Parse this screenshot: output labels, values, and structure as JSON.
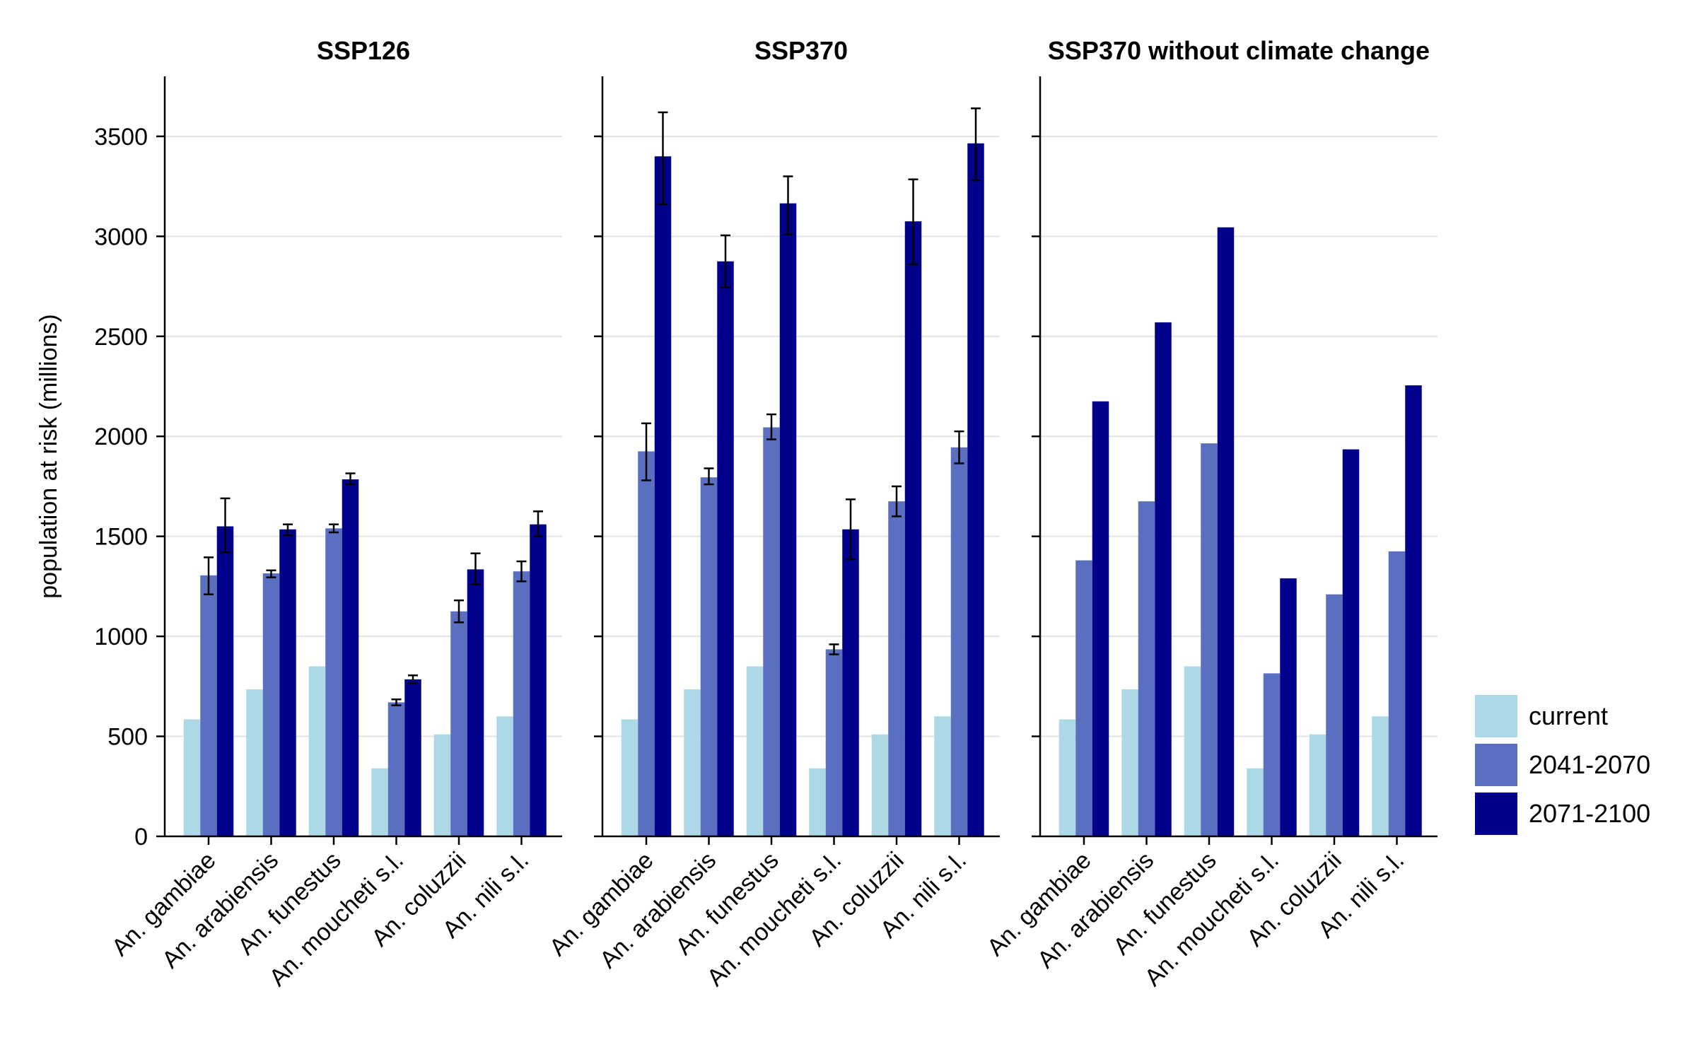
{
  "chart_data": {
    "type": "bar",
    "ylabel": "population at risk (millions)",
    "ylim": [
      0,
      3800
    ],
    "yticks": [
      0,
      500,
      1000,
      1500,
      2000,
      2500,
      3000,
      3500
    ],
    "grid": "horizontal",
    "legend_position": "right-bottom",
    "categories": [
      "An. gambiae",
      "An. arabiensis",
      "An. funestus",
      "An. moucheti s.l.",
      "An. coluzzii",
      "An. nili s.l."
    ],
    "series_names": [
      "current",
      "2041-2070",
      "2071-2100"
    ],
    "colors": [
      "#add8e6",
      "#5a6fbf",
      "#00008b"
    ],
    "panels": [
      {
        "title": "SSP126",
        "series": [
          {
            "name": "current",
            "values": [
              585,
              735,
              850,
              340,
              510,
              600
            ],
            "err": null
          },
          {
            "name": "2041-2070",
            "values": [
              1305,
              1315,
              1540,
              670,
              1125,
              1325
            ],
            "err": [
              [
                1210,
                1395
              ],
              [
                1295,
                1330
              ],
              [
                1520,
                1560
              ],
              [
                655,
                685
              ],
              [
                1070,
                1180
              ],
              [
                1275,
                1375
              ]
            ]
          },
          {
            "name": "2071-2100",
            "values": [
              1550,
              1535,
              1785,
              785,
              1335,
              1560
            ],
            "err": [
              [
                1420,
                1690
              ],
              [
                1505,
                1560
              ],
              [
                1760,
                1815
              ],
              [
                765,
                805
              ],
              [
                1260,
                1415
              ],
              [
                1500,
                1625
              ]
            ]
          }
        ]
      },
      {
        "title": "SSP370",
        "series": [
          {
            "name": "current",
            "values": [
              585,
              735,
              850,
              340,
              510,
              600
            ],
            "err": null
          },
          {
            "name": "2041-2070",
            "values": [
              1925,
              1795,
              2045,
              935,
              1675,
              1945
            ],
            "err": [
              [
                1780,
                2065
              ],
              [
                1760,
                1840
              ],
              [
                1985,
                2110
              ],
              [
                910,
                960
              ],
              [
                1600,
                1750
              ],
              [
                1865,
                2025
              ]
            ]
          },
          {
            "name": "2071-2100",
            "values": [
              3400,
              2875,
              3165,
              1535,
              3075,
              3465
            ],
            "err": [
              [
                3160,
                3620
              ],
              [
                2745,
                3005
              ],
              [
                3010,
                3300
              ],
              [
                1385,
                1685
              ],
              [
                2860,
                3285
              ],
              [
                3280,
                3640
              ]
            ]
          }
        ]
      },
      {
        "title": "SSP370 without climate change",
        "series": [
          {
            "name": "current",
            "values": [
              585,
              735,
              850,
              340,
              510,
              600
            ],
            "err": null
          },
          {
            "name": "2041-2070",
            "values": [
              1380,
              1675,
              1965,
              815,
              1210,
              1425
            ],
            "err": null
          },
          {
            "name": "2071-2100",
            "values": [
              2175,
              2570,
              3045,
              1290,
              1935,
              2255
            ],
            "err": null
          }
        ]
      }
    ]
  }
}
